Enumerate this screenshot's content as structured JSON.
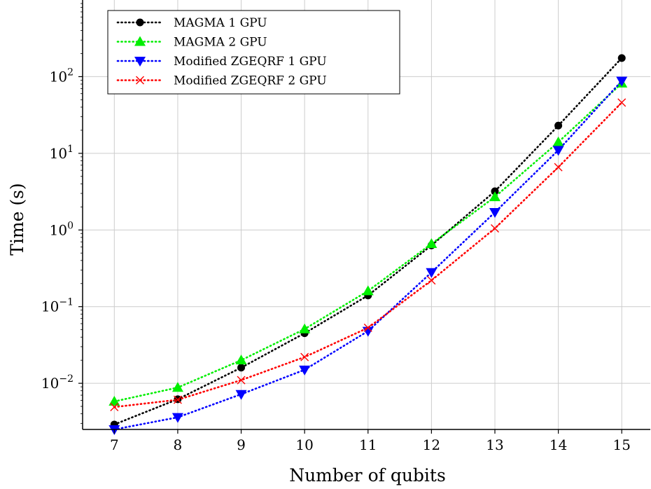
{
  "chart_data": {
    "type": "line",
    "title": "",
    "xlabel": "Number of qubits",
    "ylabel": "Time (s)",
    "y_scale": "log",
    "grid": true,
    "legend_position": "top-left",
    "x": [
      7,
      8,
      9,
      10,
      11,
      12,
      13,
      14,
      15
    ],
    "x_tick_labels": [
      "7",
      "8",
      "9",
      "10",
      "11",
      "12",
      "13",
      "14",
      "15"
    ],
    "xlim": [
      6.5,
      15.45
    ],
    "ylim": [
      0.0025,
      1000
    ],
    "y_ticks": [
      {
        "value": 0.01,
        "base": "10",
        "exp": "−2"
      },
      {
        "value": 0.1,
        "base": "10",
        "exp": "−1"
      },
      {
        "value": 1,
        "base": "10",
        "exp": "0"
      },
      {
        "value": 10,
        "base": "10",
        "exp": "1"
      },
      {
        "value": 100,
        "base": "10",
        "exp": "2"
      }
    ],
    "series": [
      {
        "name": "MAGMA 1 GPU",
        "color": "#000000",
        "marker": "circle",
        "values": [
          0.0029,
          0.0062,
          0.016,
          0.045,
          0.14,
          0.63,
          3.2,
          23,
          175
        ]
      },
      {
        "name": "MAGMA 2 GPU",
        "color": "#00ee00",
        "marker": "triangle-up",
        "values": [
          0.0058,
          0.0088,
          0.02,
          0.051,
          0.16,
          0.66,
          2.7,
          14,
          82
        ]
      },
      {
        "name": "Modified ZGEQRF 1 GPU",
        "color": "#0000ff",
        "marker": "triangle-down",
        "values": [
          0.0025,
          0.0036,
          0.0072,
          0.015,
          0.048,
          0.28,
          1.7,
          11,
          88
        ]
      },
      {
        "name": "Modified ZGEQRF 2 GPU",
        "color": "#ff0000",
        "marker": "cross",
        "values": [
          0.0049,
          0.0061,
          0.011,
          0.022,
          0.053,
          0.22,
          1.05,
          6.6,
          46
        ]
      }
    ]
  }
}
